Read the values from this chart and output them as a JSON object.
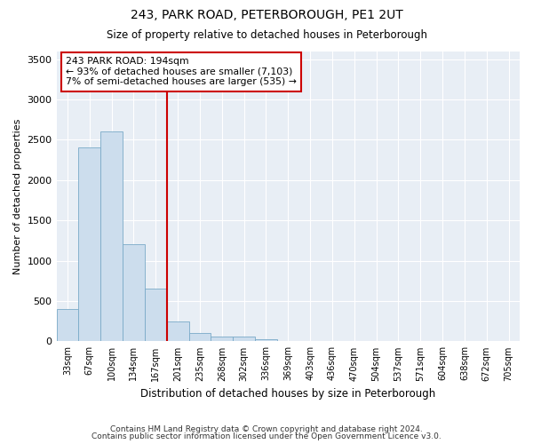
{
  "title1": "243, PARK ROAD, PETERBOROUGH, PE1 2UT",
  "title2": "Size of property relative to detached houses in Peterborough",
  "xlabel": "Distribution of detached houses by size in Peterborough",
  "ylabel": "Number of detached properties",
  "categories": [
    "33sqm",
    "67sqm",
    "100sqm",
    "134sqm",
    "167sqm",
    "201sqm",
    "235sqm",
    "268sqm",
    "302sqm",
    "336sqm",
    "369sqm",
    "403sqm",
    "436sqm",
    "470sqm",
    "504sqm",
    "537sqm",
    "571sqm",
    "604sqm",
    "638sqm",
    "672sqm",
    "705sqm"
  ],
  "values": [
    400,
    2400,
    2600,
    1200,
    650,
    250,
    100,
    60,
    60,
    30,
    0,
    0,
    0,
    0,
    0,
    0,
    0,
    0,
    0,
    0,
    0
  ],
  "bar_color": "#ccdded",
  "bar_edge_color": "#7aaac8",
  "vline_color": "#cc0000",
  "annotation_text": "243 PARK ROAD: 194sqm\n← 93% of detached houses are smaller (7,103)\n7% of semi-detached houses are larger (535) →",
  "annotation_box_color": "white",
  "annotation_box_edge": "#cc0000",
  "ylim": [
    0,
    3600
  ],
  "yticks": [
    0,
    500,
    1000,
    1500,
    2000,
    2500,
    3000,
    3500
  ],
  "footer1": "Contains HM Land Registry data © Crown copyright and database right 2024.",
  "footer2": "Contains public sector information licensed under the Open Government Licence v3.0.",
  "plot_bg_color": "#e8eef5"
}
